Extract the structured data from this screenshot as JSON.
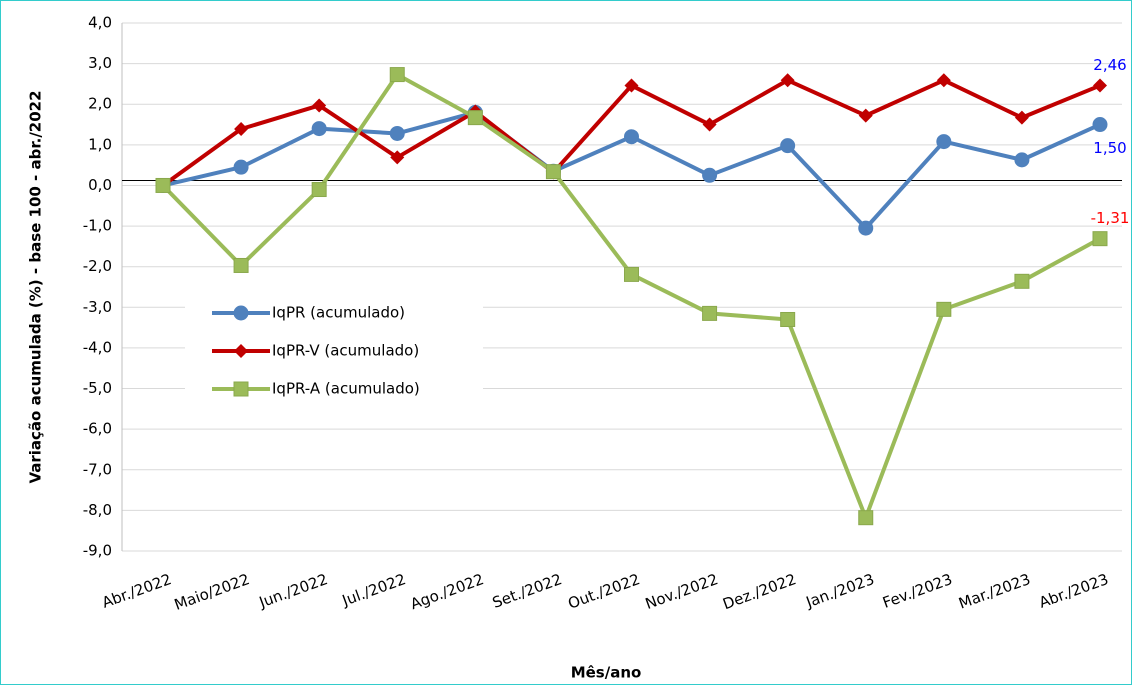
{
  "chart_data": {
    "type": "line",
    "x_label": "Mês/ano",
    "y_label": "Variação acumulada (%) - base 100 - abr./2022",
    "categories": [
      "Abr./2022",
      "Maio/2022",
      "Jun./2022",
      "Jul./2022",
      "Ago./2022",
      "Set./2022",
      "Out./2022",
      "Nov./2022",
      "Dez./2022",
      "Jan./2023",
      "Fev./2023",
      "Mar./2023",
      "Abr./2023"
    ],
    "series": [
      {
        "name": "IqPR (acumulado)",
        "color": "#4f81bd",
        "marker": "circle",
        "label_color": "#0000ff",
        "label_position": "below",
        "values": [
          0,
          0.45,
          1.4,
          1.28,
          1.8,
          0.35,
          1.2,
          0.25,
          0.98,
          -1.05,
          1.08,
          0.63,
          1.5
        ],
        "value_labels": [
          null,
          null,
          null,
          null,
          null,
          null,
          null,
          null,
          null,
          null,
          null,
          null,
          "1,50"
        ]
      },
      {
        "name": "IqPR-V  (acumulado)",
        "color": "#c00000",
        "marker": "diamond",
        "label_color": "#0000ff",
        "label_position": "above",
        "values": [
          0,
          1.39,
          1.97,
          0.69,
          1.82,
          0.32,
          2.46,
          1.5,
          2.59,
          1.72,
          2.59,
          1.67,
          2.46
        ],
        "value_labels": [
          null,
          null,
          null,
          null,
          null,
          null,
          null,
          null,
          null,
          null,
          null,
          null,
          "2,46"
        ]
      },
      {
        "name": "IqPR-A  (acumulado)",
        "color": "#9bbb59",
        "marker": "square",
        "label_color": "#ff0000",
        "label_position": "above",
        "values": [
          0,
          -1.97,
          -0.1,
          2.73,
          1.67,
          0.34,
          -2.19,
          -3.15,
          -3.3,
          -8.18,
          -3.05,
          -2.36,
          -1.31
        ],
        "value_labels": [
          null,
          null,
          null,
          null,
          null,
          null,
          null,
          null,
          null,
          null,
          null,
          null,
          "-1,31"
        ]
      }
    ],
    "ylim": [
      -9,
      4
    ],
    "yticks": [
      {
        "value": -9,
        "label": "-9,0"
      },
      {
        "value": -8,
        "label": "-8,0"
      },
      {
        "value": -7,
        "label": "-7,0"
      },
      {
        "value": -6,
        "label": "-6,0"
      },
      {
        "value": -5,
        "label": "-5,0"
      },
      {
        "value": -4,
        "label": "-4,0"
      },
      {
        "value": -3,
        "label": "-3,0"
      },
      {
        "value": -2,
        "label": "-2,0"
      },
      {
        "value": -1,
        "label": "-1,0"
      },
      {
        "value": 0,
        "label": "0,0"
      },
      {
        "value": 1,
        "label": "1,0"
      },
      {
        "value": 2,
        "label": "2,0"
      },
      {
        "value": 3,
        "label": "3,0"
      },
      {
        "value": 4,
        "label": "4,0"
      }
    ],
    "grid": true,
    "legend": "left"
  }
}
